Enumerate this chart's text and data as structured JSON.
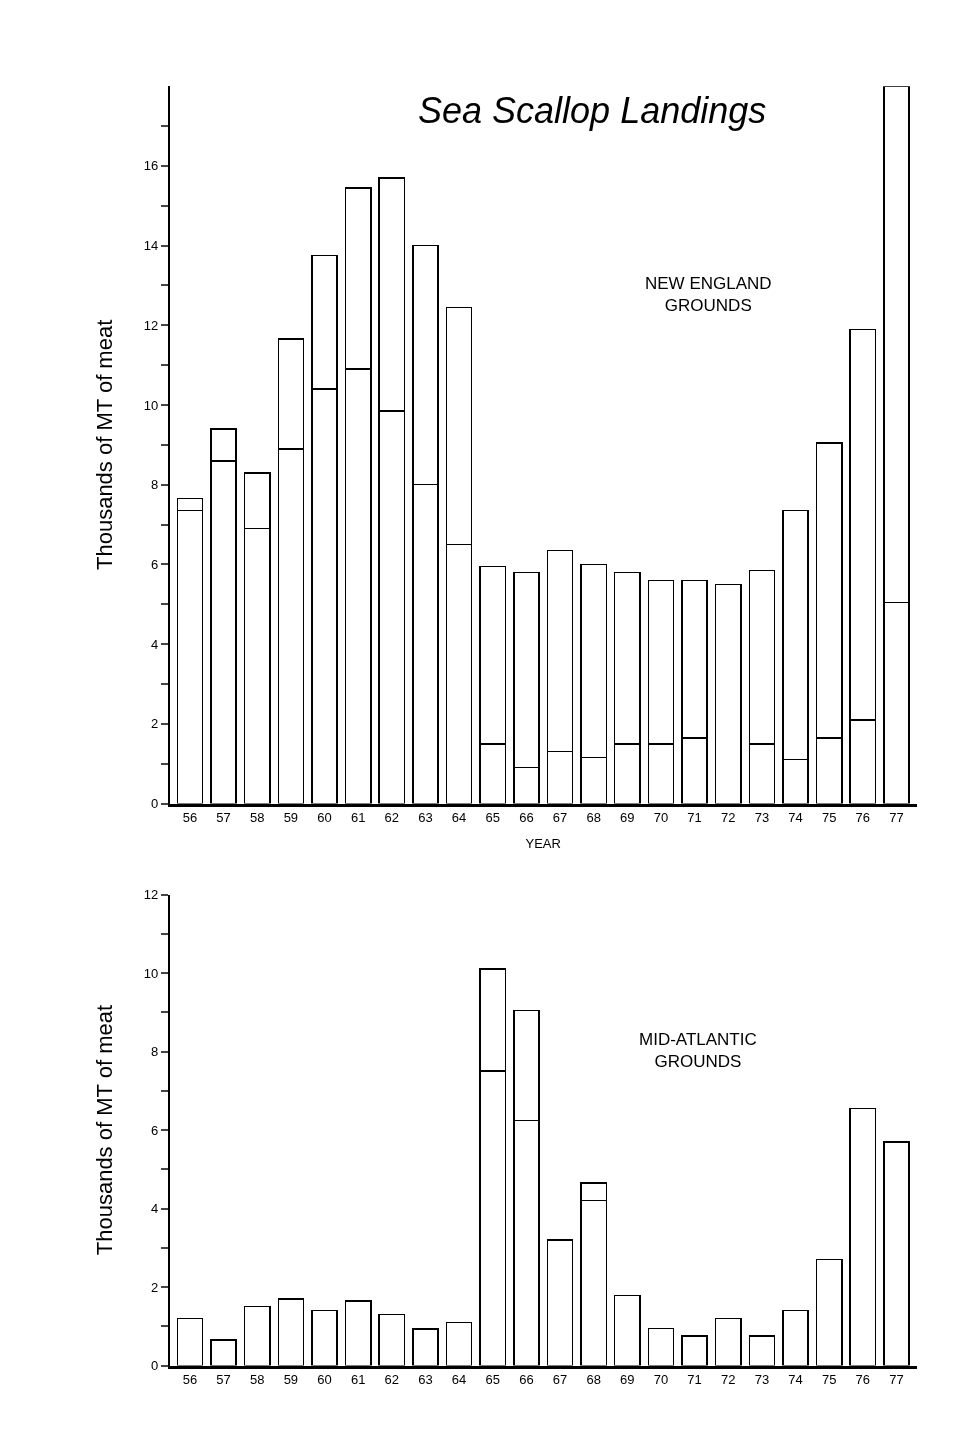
{
  "chart_data": [
    {
      "type": "bar",
      "title": "Sea Scallop Landings",
      "xlabel": "YEAR",
      "ylabel": "Thousands of MT of meat",
      "stacked": true,
      "categories": [
        "56",
        "57",
        "58",
        "59",
        "60",
        "61",
        "62",
        "63",
        "64",
        "65",
        "66",
        "67",
        "68",
        "69",
        "70",
        "71",
        "72",
        "73",
        "74",
        "75",
        "76",
        "77"
      ],
      "series": [
        {
          "color": "#ffffff",
          "values": [
            7.35,
            8.6,
            6.9,
            8.9,
            10.4,
            10.9,
            9.85,
            8.0,
            6.5,
            1.5,
            0.9,
            1.3,
            1.15,
            1.5,
            1.5,
            1.65,
            null,
            1.5,
            1.1,
            1.65,
            2.1,
            5.05
          ]
        },
        {
          "color": "#ffffff",
          "values": [
            0.3,
            0.8,
            1.4,
            2.75,
            3.35,
            4.55,
            5.85,
            6.0,
            5.95,
            4.45,
            4.9,
            5.05,
            4.85,
            4.3,
            4.1,
            3.95,
            5.5,
            4.35,
            6.25,
            7.4,
            9.8,
            12.95
          ]
        }
      ],
      "ylim": [
        0,
        18
      ],
      "yticks": [
        0,
        {
          "value": 1,
          "label": null
        },
        2,
        {
          "value": 3,
          "label": null
        },
        4,
        {
          "value": 5,
          "label": null
        },
        6,
        {
          "value": 7,
          "label": null
        },
        8,
        {
          "value": 9,
          "label": null
        },
        10,
        {
          "value": 11,
          "label": null
        },
        12,
        {
          "value": 13,
          "label": null
        },
        14,
        {
          "value": 15,
          "label": null
        },
        16,
        {
          "value": 17,
          "label": null
        }
      ],
      "annotations": [
        "NEW ENGLAND\nGROUNDS"
      ]
    },
    {
      "type": "bar",
      "ylabel": "Thousands of MT of meat",
      "stacked": true,
      "categories": [
        "56",
        "57",
        "58",
        "59",
        "60",
        "61",
        "62",
        "63",
        "64",
        "65",
        "66",
        "67",
        "68",
        "69",
        "70",
        "71",
        "72",
        "73",
        "74",
        "75",
        "76",
        "77"
      ],
      "series": [
        {
          "color": "#ffffff",
          "values": [
            1.2,
            0.65,
            1.5,
            1.7,
            1.4,
            1.65,
            1.3,
            0.93,
            1.1,
            7.5,
            6.25,
            3.2,
            4.2,
            1.78,
            0.95,
            0.75,
            1.2,
            0.75,
            1.4,
            2.7,
            6.55,
            5.7
          ]
        },
        {
          "color": "#ffffff",
          "values": [
            null,
            null,
            null,
            null,
            null,
            null,
            null,
            null,
            null,
            2.6,
            2.8,
            null,
            0.45,
            null,
            null,
            null,
            null,
            null,
            null,
            null,
            null,
            null
          ]
        }
      ],
      "ylim": [
        0,
        12
      ],
      "yticks": [
        0,
        {
          "value": 1,
          "label": null
        },
        2,
        {
          "value": 3,
          "label": null
        },
        4,
        {
          "value": 5,
          "label": null
        },
        6,
        {
          "value": 7,
          "label": null
        },
        8,
        {
          "value": 9,
          "label": null
        },
        10,
        {
          "value": 11,
          "label": null
        },
        12
      ],
      "annotations": [
        "MID-ATLANTIC\nGROUNDS"
      ]
    }
  ]
}
